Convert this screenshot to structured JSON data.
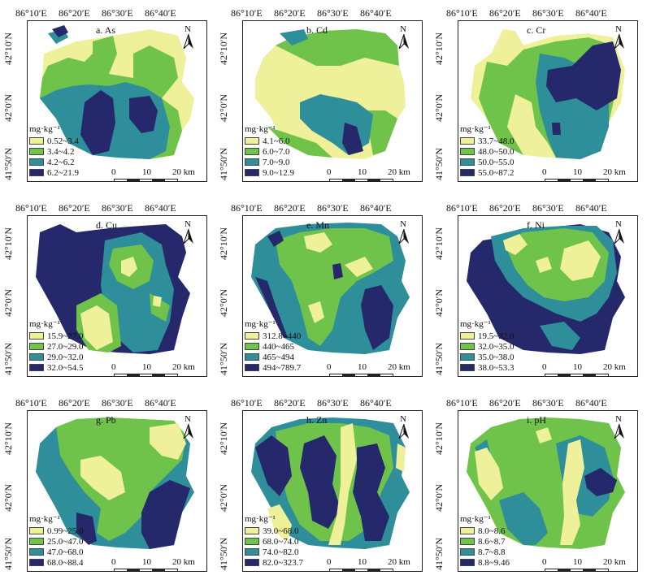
{
  "lon_labels": [
    "86°10′E",
    "86°20′E",
    "86°30′E",
    "86°40′E"
  ],
  "lat_labels": [
    "42°10′N",
    "42°0′N",
    "41°50′N"
  ],
  "north_label": "N",
  "unit_label": "mg·kg⁻¹",
  "scale": {
    "zero": "0",
    "mid": "10",
    "end": "20 km"
  },
  "colors": {
    "c1": "#eef09a",
    "c2": "#6fc24a",
    "c3": "#2e8e9a",
    "c4": "#25286a",
    "background": "#ffffff"
  },
  "panels": [
    {
      "title": "a. As",
      "ranges": [
        "0.52~3.4",
        "3.4~4.2",
        "4.2~6.2",
        "6.2~21.9"
      ]
    },
    {
      "title": "b. Cd",
      "ranges": [
        "4.1~6.0",
        "6.0~7.0",
        "7.0~9.0",
        "9.0~12.9"
      ]
    },
    {
      "title": "c. Cr",
      "ranges": [
        "33.7~48.0",
        "48.0~50.0",
        "50.0~55.0",
        "55.0~87.2"
      ]
    },
    {
      "title": "d. Cu",
      "ranges": [
        "15.9~27.0",
        "27.0~29.0",
        "29.0~32.0",
        "32.0~54.5"
      ]
    },
    {
      "title": "e. Mn",
      "ranges": [
        "312.8~440",
        "440~465",
        "465~494",
        "494~789.7"
      ]
    },
    {
      "title": "f. Ni",
      "ranges": [
        "19.5~32.0",
        "32.0~35.0",
        "35.0~38.0",
        "38.0~53.3"
      ]
    },
    {
      "title": "g. Pb",
      "ranges": [
        "0.99~25.0",
        "25.0~47.0",
        "47.0~68.0",
        "68.0~88.4"
      ]
    },
    {
      "title": "h. Zn",
      "ranges": [
        "39.0~68.0",
        "68.0~74.0",
        "74.0~82.0",
        "82.0~323.7"
      ]
    },
    {
      "title": "i. pH",
      "unit": "",
      "ranges": [
        "8.0~8.6",
        "8.6~8.7",
        "8.7~8.8",
        "8.8~9.46"
      ]
    }
  ]
}
